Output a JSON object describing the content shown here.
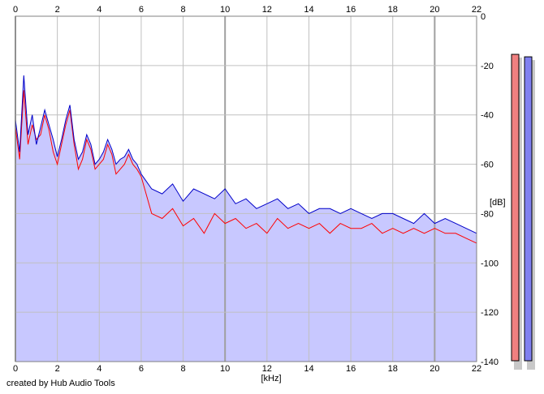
{
  "credit": "created by Hub Audio Tools",
  "chart_data": {
    "type": "line",
    "xlabel": "[kHz]",
    "ylabel": "[dB]",
    "xlim": [
      0,
      22
    ],
    "ylim": [
      -140,
      0
    ],
    "x_ticks": [
      0,
      2,
      4,
      6,
      8,
      10,
      12,
      14,
      16,
      18,
      20,
      22
    ],
    "x_tick_labels": [
      "0",
      "2",
      "4",
      "6",
      "8",
      "10",
      "12",
      "14",
      "16",
      "18",
      "20",
      "22"
    ],
    "y_ticks": [
      0,
      -20,
      -40,
      -60,
      -80,
      -100,
      -120,
      -140
    ],
    "y_tick_labels": [
      "0",
      "-20",
      "-40",
      "-60",
      "-80",
      "-100",
      "-120",
      "-140"
    ],
    "grid": true,
    "x_axis_ticks_on_top_and_bottom": true,
    "colors": {
      "fill": "#c8c8ff",
      "grid": "#c0c0c0",
      "grid_major": "#a0a0a0",
      "left": "#ff0000",
      "right": "#0000c8",
      "left_meter": "#f08080",
      "right_meter": "#8080f0"
    },
    "series": [
      {
        "color": "#ff0000",
        "x": [
          0,
          0.2,
          0.4,
          0.6,
          0.8,
          1.0,
          1.2,
          1.4,
          1.6,
          1.8,
          2.0,
          2.2,
          2.4,
          2.6,
          2.8,
          3.0,
          3.2,
          3.4,
          3.6,
          3.8,
          4.0,
          4.2,
          4.4,
          4.6,
          4.8,
          5.0,
          5.2,
          5.4,
          5.6,
          5.8,
          6.0,
          6.5,
          7.0,
          7.5,
          8.0,
          8.5,
          9.0,
          9.5,
          10.0,
          10.5,
          11.0,
          11.5,
          12.0,
          12.5,
          13.0,
          13.5,
          14.0,
          14.5,
          15.0,
          15.5,
          16.0,
          16.5,
          17.0,
          17.5,
          18.0,
          18.5,
          19.0,
          19.5,
          20.0,
          20.5,
          21.0,
          21.5,
          22.0
        ],
        "values": [
          -45,
          -58,
          -30,
          -52,
          -44,
          -50,
          -48,
          -40,
          -46,
          -55,
          -60,
          -52,
          -44,
          -38,
          -52,
          -62,
          -58,
          -50,
          -54,
          -62,
          -60,
          -58,
          -52,
          -56,
          -64,
          -62,
          -60,
          -56,
          -60,
          -62,
          -65,
          -80,
          -82,
          -78,
          -85,
          -82,
          -88,
          -80,
          -84,
          -82,
          -86,
          -84,
          -88,
          -82,
          -86,
          -84,
          -86,
          -84,
          -88,
          -84,
          -86,
          -86,
          -84,
          -88,
          -86,
          -88,
          -86,
          -88,
          -86,
          -88,
          -88,
          -90,
          -92
        ]
      },
      {
        "color": "#0000c8",
        "x": [
          0,
          0.2,
          0.4,
          0.6,
          0.8,
          1.0,
          1.2,
          1.4,
          1.6,
          1.8,
          2.0,
          2.2,
          2.4,
          2.6,
          2.8,
          3.0,
          3.2,
          3.4,
          3.6,
          3.8,
          4.0,
          4.2,
          4.4,
          4.6,
          4.8,
          5.0,
          5.2,
          5.4,
          5.6,
          5.8,
          6.0,
          6.5,
          7.0,
          7.5,
          8.0,
          8.5,
          9.0,
          9.5,
          10.0,
          10.5,
          11.0,
          11.5,
          12.0,
          12.5,
          13.0,
          13.5,
          14.0,
          14.5,
          15.0,
          15.5,
          16.0,
          16.5,
          17.0,
          17.5,
          18.0,
          18.5,
          19.0,
          19.5,
          20.0,
          20.5,
          21.0,
          21.5,
          22.0
        ],
        "values": [
          -42,
          -55,
          -24,
          -48,
          -40,
          -52,
          -45,
          -38,
          -44,
          -50,
          -57,
          -50,
          -42,
          -36,
          -50,
          -58,
          -55,
          -48,
          -52,
          -60,
          -58,
          -55,
          -50,
          -54,
          -60,
          -58,
          -57,
          -54,
          -58,
          -60,
          -64,
          -70,
          -72,
          -68,
          -75,
          -70,
          -72,
          -74,
          -70,
          -76,
          -74,
          -78,
          -76,
          -74,
          -78,
          -76,
          -80,
          -78,
          -78,
          -80,
          -78,
          -80,
          -82,
          -80,
          -80,
          -82,
          -84,
          -80,
          -84,
          -82,
          -84,
          -86,
          -88
        ]
      }
    ],
    "level_meters": [
      {
        "color": "#f08080",
        "level_db": -1
      },
      {
        "color": "#8080f0",
        "level_db": -2
      }
    ]
  }
}
